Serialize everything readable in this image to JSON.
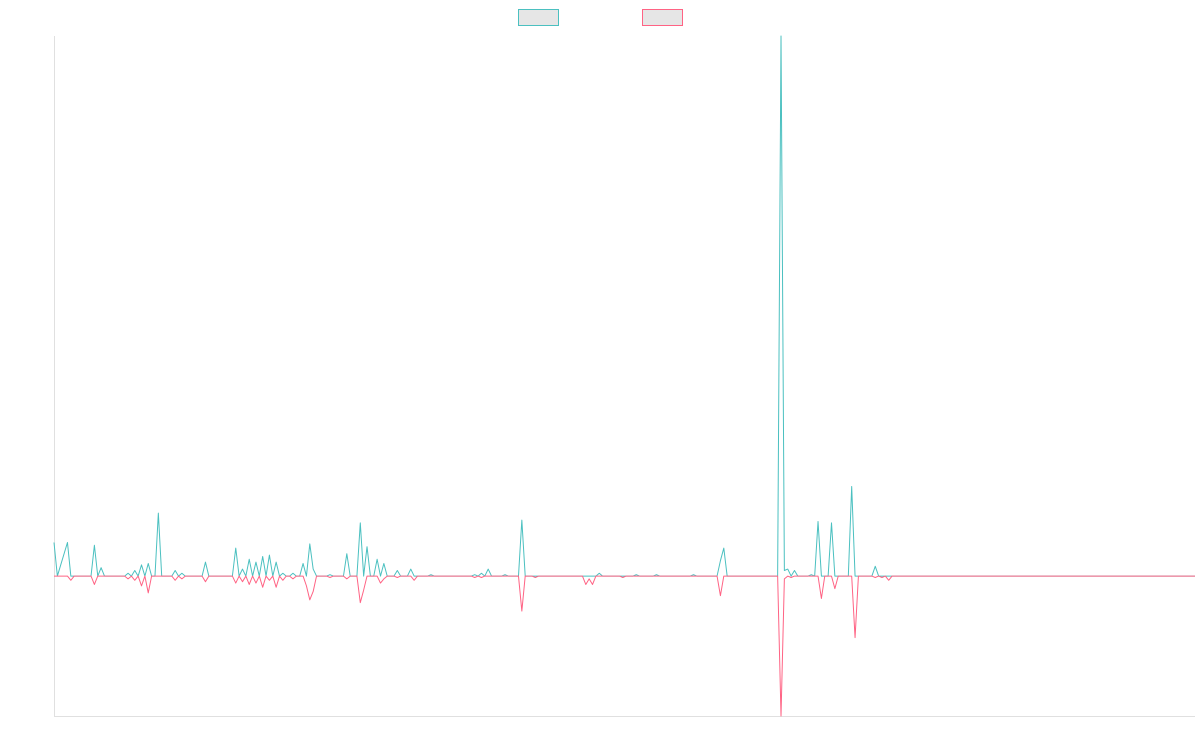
{
  "chart_data": {
    "type": "line",
    "title": "",
    "xlabel": "",
    "ylabel": "",
    "legend_position": "top-center",
    "grid": false,
    "x_count": 340,
    "ylim": [
      -5,
      19.3
    ],
    "baseline": 0,
    "series": [
      {
        "name": "",
        "color": "#4bc0c0",
        "fill": "#e6e6e6",
        "points": [
          [
            0,
            1.2
          ],
          [
            1,
            0
          ],
          [
            4,
            1.2
          ],
          [
            5,
            0
          ],
          [
            11,
            0
          ],
          [
            12,
            1.1
          ],
          [
            13,
            0
          ],
          [
            14,
            0.3
          ],
          [
            15,
            0
          ],
          [
            21,
            0
          ],
          [
            22,
            0.1
          ],
          [
            23,
            0
          ],
          [
            24,
            0.2
          ],
          [
            25,
            0
          ],
          [
            26,
            0.4
          ],
          [
            27,
            0
          ],
          [
            28,
            0.45
          ],
          [
            29,
            0
          ],
          [
            30,
            0
          ],
          [
            31,
            2.25
          ],
          [
            32,
            0
          ],
          [
            35,
            0
          ],
          [
            36,
            0.2
          ],
          [
            37,
            0
          ],
          [
            38,
            0.1
          ],
          [
            39,
            0
          ],
          [
            44,
            0
          ],
          [
            45,
            0.5
          ],
          [
            46,
            0
          ],
          [
            53,
            0
          ],
          [
            54,
            1
          ],
          [
            55,
            0
          ],
          [
            56,
            0.25
          ],
          [
            57,
            0
          ],
          [
            58,
            0.6
          ],
          [
            59,
            0
          ],
          [
            60,
            0.5
          ],
          [
            61,
            0
          ],
          [
            62,
            0.7
          ],
          [
            63,
            0
          ],
          [
            64,
            0.75
          ],
          [
            65,
            0
          ],
          [
            66,
            0.5
          ],
          [
            67,
            0
          ],
          [
            68,
            0.1
          ],
          [
            69,
            0
          ],
          [
            70,
            0
          ],
          [
            71,
            0.1
          ],
          [
            72,
            0
          ],
          [
            73,
            0
          ],
          [
            74,
            0.45
          ],
          [
            75,
            0
          ],
          [
            76,
            1.15
          ],
          [
            77,
            0.25
          ],
          [
            78,
            0
          ],
          [
            81,
            0
          ],
          [
            82,
            0.05
          ],
          [
            83,
            0
          ],
          [
            86,
            0
          ],
          [
            87,
            0.8
          ],
          [
            88,
            0
          ],
          [
            90,
            0
          ],
          [
            91,
            1.9
          ],
          [
            92,
            0
          ],
          [
            93,
            1.05
          ],
          [
            94,
            0
          ],
          [
            95,
            0
          ],
          [
            96,
            0.6
          ],
          [
            97,
            0
          ],
          [
            98,
            0.45
          ],
          [
            99,
            0
          ],
          [
            101,
            0
          ],
          [
            102,
            0.2
          ],
          [
            103,
            0
          ],
          [
            105,
            0
          ],
          [
            106,
            0.25
          ],
          [
            107,
            0
          ],
          [
            111,
            0
          ],
          [
            112,
            0.05
          ],
          [
            113,
            0
          ],
          [
            124,
            0
          ],
          [
            125,
            0.05
          ],
          [
            126,
            0
          ],
          [
            127,
            0.1
          ],
          [
            128,
            0
          ],
          [
            129,
            0.25
          ],
          [
            130,
            0
          ],
          [
            133,
            0
          ],
          [
            134,
            0.05
          ],
          [
            135,
            0
          ],
          [
            138,
            0
          ],
          [
            139,
            2
          ],
          [
            140,
            0
          ],
          [
            160,
            0
          ],
          [
            161,
            0
          ],
          [
            162,
            0.1
          ],
          [
            163,
            0
          ],
          [
            172,
            0
          ],
          [
            173,
            0.05
          ],
          [
            174,
            0
          ],
          [
            178,
            0
          ],
          [
            179,
            0.05
          ],
          [
            180,
            0
          ],
          [
            189,
            0
          ],
          [
            190,
            0.05
          ],
          [
            191,
            0
          ],
          [
            197,
            0
          ],
          [
            198,
            0.55
          ],
          [
            199,
            1
          ],
          [
            200,
            0
          ],
          [
            215,
            0
          ],
          [
            216,
            19.3
          ],
          [
            217,
            0.2
          ],
          [
            218,
            0.25
          ],
          [
            219,
            0
          ],
          [
            220,
            0.2
          ],
          [
            221,
            0
          ],
          [
            224,
            0
          ],
          [
            225,
            0.05
          ],
          [
            226,
            0
          ],
          [
            227,
            1.95
          ],
          [
            228,
            0
          ],
          [
            230,
            0
          ],
          [
            231,
            1.9
          ],
          [
            232,
            0
          ],
          [
            236,
            0
          ],
          [
            237,
            3.2
          ],
          [
            238,
            0
          ],
          [
            239,
            0
          ],
          [
            240,
            0
          ],
          [
            241,
            0
          ],
          [
            242,
            0
          ],
          [
            243,
            0
          ],
          [
            244,
            0.35
          ],
          [
            245,
            0
          ],
          [
            339,
            0
          ]
        ]
      },
      {
        "name": "",
        "color": "#ff6384",
        "fill": "#e6e6e6",
        "points": [
          [
            0,
            0
          ],
          [
            4,
            0
          ],
          [
            5,
            -0.15
          ],
          [
            6,
            0
          ],
          [
            11,
            0
          ],
          [
            12,
            -0.3
          ],
          [
            13,
            0
          ],
          [
            21,
            0
          ],
          [
            22,
            -0.1
          ],
          [
            23,
            0
          ],
          [
            24,
            -0.15
          ],
          [
            25,
            0
          ],
          [
            26,
            -0.35
          ],
          [
            27,
            0
          ],
          [
            28,
            -0.6
          ],
          [
            29,
            0
          ],
          [
            35,
            0
          ],
          [
            36,
            -0.15
          ],
          [
            37,
            0
          ],
          [
            38,
            -0.1
          ],
          [
            39,
            0
          ],
          [
            44,
            0
          ],
          [
            45,
            -0.2
          ],
          [
            46,
            0
          ],
          [
            53,
            0
          ],
          [
            54,
            -0.25
          ],
          [
            55,
            0
          ],
          [
            56,
            -0.2
          ],
          [
            57,
            0
          ],
          [
            58,
            -0.3
          ],
          [
            59,
            0
          ],
          [
            60,
            -0.25
          ],
          [
            61,
            0
          ],
          [
            62,
            -0.4
          ],
          [
            63,
            0
          ],
          [
            64,
            -0.15
          ],
          [
            65,
            0
          ],
          [
            66,
            -0.4
          ],
          [
            67,
            0
          ],
          [
            68,
            -0.15
          ],
          [
            69,
            0
          ],
          [
            70,
            0
          ],
          [
            71,
            -0.1
          ],
          [
            72,
            0
          ],
          [
            74,
            0
          ],
          [
            75,
            -0.35
          ],
          [
            76,
            -0.85
          ],
          [
            77,
            -0.55
          ],
          [
            78,
            0
          ],
          [
            81,
            0
          ],
          [
            82,
            -0.05
          ],
          [
            83,
            0
          ],
          [
            86,
            0
          ],
          [
            87,
            -0.1
          ],
          [
            88,
            0
          ],
          [
            90,
            0
          ],
          [
            91,
            -0.95
          ],
          [
            92,
            -0.5
          ],
          [
            93,
            0
          ],
          [
            96,
            0
          ],
          [
            97,
            -0.25
          ],
          [
            98,
            -0.1
          ],
          [
            99,
            0
          ],
          [
            101,
            0
          ],
          [
            102,
            -0.05
          ],
          [
            103,
            0
          ],
          [
            106,
            0
          ],
          [
            107,
            -0.15
          ],
          [
            108,
            0
          ],
          [
            124,
            0
          ],
          [
            125,
            -0.05
          ],
          [
            126,
            0
          ],
          [
            127,
            -0.05
          ],
          [
            128,
            0
          ],
          [
            138,
            0
          ],
          [
            139,
            -1.25
          ],
          [
            140,
            0
          ],
          [
            142,
            0
          ],
          [
            143,
            -0.05
          ],
          [
            144,
            0
          ],
          [
            157,
            0
          ],
          [
            158,
            -0.3
          ],
          [
            159,
            -0.1
          ],
          [
            160,
            -0.3
          ],
          [
            161,
            0
          ],
          [
            168,
            0
          ],
          [
            169,
            -0.05
          ],
          [
            170,
            0
          ],
          [
            194,
            0
          ],
          [
            197,
            0
          ],
          [
            198,
            -0.7
          ],
          [
            199,
            0
          ],
          [
            215,
            0
          ],
          [
            216,
            -5
          ],
          [
            217,
            -0.1
          ],
          [
            218,
            0
          ],
          [
            219,
            -0.05
          ],
          [
            220,
            0
          ],
          [
            227,
            0
          ],
          [
            228,
            -0.8
          ],
          [
            229,
            0
          ],
          [
            231,
            0
          ],
          [
            232,
            -0.45
          ],
          [
            233,
            0
          ],
          [
            237,
            0
          ],
          [
            238,
            -2.2
          ],
          [
            239,
            0
          ],
          [
            243,
            0
          ],
          [
            244,
            -0.05
          ],
          [
            245,
            0
          ],
          [
            246,
            -0.05
          ],
          [
            247,
            0
          ],
          [
            248,
            -0.15
          ],
          [
            249,
            0
          ],
          [
            339,
            0
          ]
        ]
      }
    ]
  }
}
